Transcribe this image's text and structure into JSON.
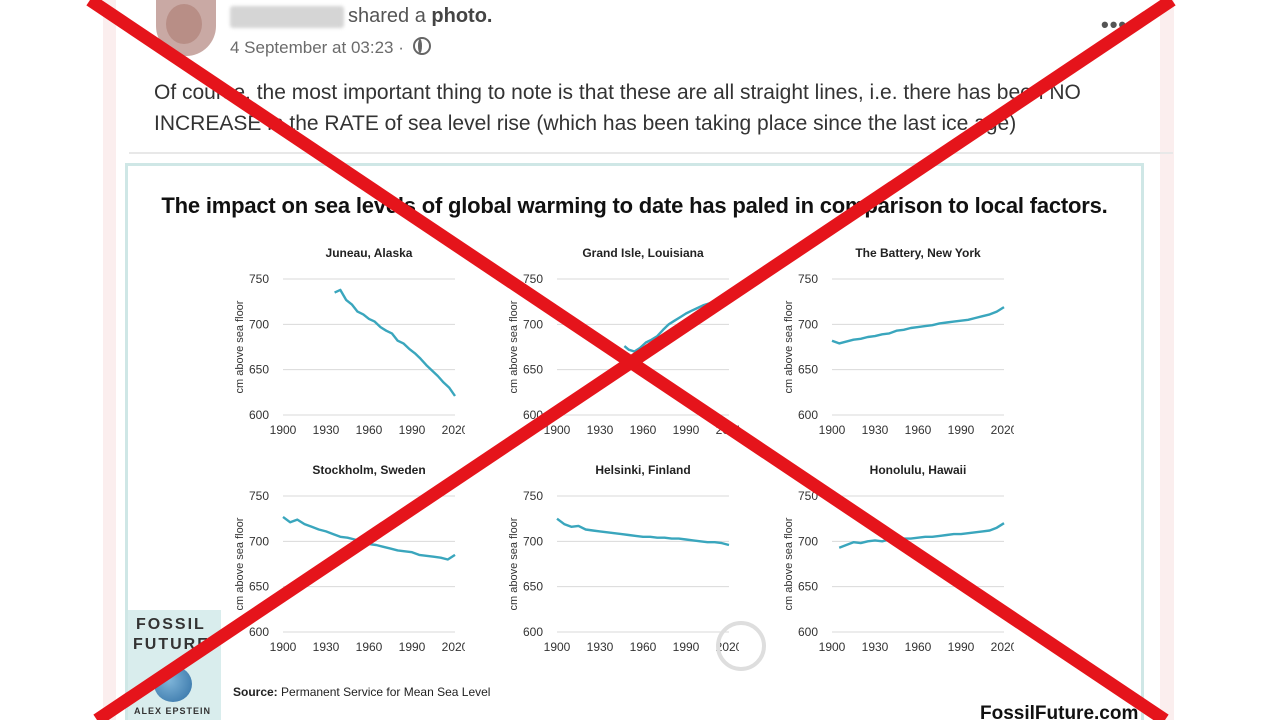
{
  "post": {
    "shared_text": "shared a",
    "shared_object": "photo.",
    "timestamp": "4 September at 03:23 ·",
    "more_label": "•••",
    "body": "Of course, the most important thing to note is that these are all straight lines, i.e. there has been NO INCREASE in the RATE of sea level rise (which has been taking place since the last ice age)"
  },
  "icons": {
    "audience": "globe-icon",
    "options": "more-options-icon"
  },
  "photo": {
    "title": "The impact on sea levels of global warming to date has paled in comparison to local factors.",
    "source_label": "Source:",
    "source_text": "Permanent Service for Mean Sea Level",
    "brand": "FossilFuture.com",
    "logo_line1": "FOSSIL",
    "logo_line2": "FUTURE",
    "logo_line3": "ALEX EPSTEIN"
  },
  "colors": {
    "series": "#3aa6bd",
    "cross": "#e5141b"
  },
  "chart_data": [
    {
      "type": "line",
      "title": "Juneau, Alaska",
      "ylabel": "cm above sea floor",
      "xlim": [
        1900,
        2020
      ],
      "ylim": [
        600,
        750
      ],
      "x_ticks": [
        1900,
        1930,
        1960,
        1990,
        2020
      ],
      "y_ticks": [
        600,
        650,
        700,
        750
      ],
      "grid": true,
      "series": [
        {
          "x": [
            1936,
            1940,
            1944,
            1948,
            1952,
            1956,
            1960,
            1964,
            1968,
            1972,
            1976,
            1980,
            1984,
            1988,
            1992,
            1996,
            2000,
            2004,
            2008,
            2012,
            2016,
            2020
          ],
          "values": [
            735,
            738,
            727,
            722,
            714,
            711,
            706,
            703,
            697,
            693,
            690,
            682,
            679,
            673,
            668,
            662,
            655,
            649,
            643,
            636,
            630,
            621
          ]
        }
      ]
    },
    {
      "type": "line",
      "title": "Grand Isle, Louisiana",
      "ylabel": "cm above sea floor",
      "xlim": [
        1900,
        2020
      ],
      "ylim": [
        600,
        750
      ],
      "x_ticks": [
        1900,
        1930,
        1960,
        1990,
        2020
      ],
      "y_ticks": [
        600,
        650,
        700,
        750
      ],
      "grid": true,
      "series": [
        {
          "x": [
            1947,
            1950,
            1954,
            1958,
            1962,
            1966,
            1970,
            1974,
            1978,
            1982,
            1986,
            1990,
            1994,
            1998,
            2002,
            2006,
            2010,
            2014,
            2018,
            2020
          ],
          "values": [
            676,
            672,
            670,
            674,
            680,
            683,
            687,
            694,
            700,
            704,
            708,
            712,
            715,
            718,
            721,
            723,
            725,
            727,
            729,
            731
          ]
        }
      ]
    },
    {
      "type": "line",
      "title": "The Battery, New York",
      "ylabel": "cm above sea floor",
      "xlim": [
        1900,
        2020
      ],
      "ylim": [
        600,
        750
      ],
      "x_ticks": [
        1900,
        1930,
        1960,
        1990,
        2020
      ],
      "y_ticks": [
        600,
        650,
        700,
        750
      ],
      "grid": true,
      "series": [
        {
          "x": [
            1900,
            1905,
            1910,
            1915,
            1920,
            1925,
            1930,
            1935,
            1940,
            1945,
            1950,
            1955,
            1960,
            1965,
            1970,
            1975,
            1980,
            1985,
            1990,
            1995,
            2000,
            2005,
            2010,
            2015,
            2020
          ],
          "values": [
            682,
            679,
            681,
            683,
            684,
            686,
            687,
            689,
            690,
            693,
            694,
            696,
            697,
            698,
            699,
            701,
            702,
            703,
            704,
            705,
            707,
            709,
            711,
            714,
            719
          ]
        }
      ]
    },
    {
      "type": "line",
      "title": "Stockholm, Sweden",
      "ylabel": "cm above sea floor",
      "xlim": [
        1900,
        2020
      ],
      "ylim": [
        600,
        750
      ],
      "x_ticks": [
        1900,
        1930,
        1960,
        1990,
        2020
      ],
      "y_ticks": [
        600,
        650,
        700,
        750
      ],
      "grid": true,
      "series": [
        {
          "x": [
            1900,
            1905,
            1910,
            1915,
            1920,
            1925,
            1930,
            1935,
            1940,
            1945,
            1950,
            1955,
            1960,
            1965,
            1970,
            1975,
            1980,
            1985,
            1990,
            1995,
            2000,
            2005,
            2010,
            2015,
            2020
          ],
          "values": [
            727,
            721,
            724,
            719,
            716,
            713,
            711,
            708,
            705,
            704,
            702,
            700,
            697,
            696,
            694,
            692,
            690,
            689,
            688,
            685,
            684,
            683,
            682,
            680,
            685
          ]
        }
      ]
    },
    {
      "type": "line",
      "title": "Helsinki, Finland",
      "ylabel": "cm above sea floor",
      "xlim": [
        1900,
        2020
      ],
      "ylim": [
        600,
        750
      ],
      "x_ticks": [
        1900,
        1930,
        1960,
        1990,
        2020
      ],
      "y_ticks": [
        600,
        650,
        700,
        750
      ],
      "grid": true,
      "series": [
        {
          "x": [
            1900,
            1905,
            1910,
            1915,
            1920,
            1925,
            1930,
            1935,
            1940,
            1945,
            1950,
            1955,
            1960,
            1965,
            1970,
            1975,
            1980,
            1985,
            1990,
            1995,
            2000,
            2005,
            2010,
            2015,
            2020
          ],
          "values": [
            725,
            719,
            716,
            717,
            713,
            712,
            711,
            710,
            709,
            708,
            707,
            706,
            705,
            705,
            704,
            704,
            703,
            703,
            702,
            701,
            700,
            699,
            699,
            698,
            696
          ]
        }
      ]
    },
    {
      "type": "line",
      "title": "Honolulu, Hawaii",
      "ylabel": "cm above sea floor",
      "xlim": [
        1900,
        2020
      ],
      "ylim": [
        600,
        750
      ],
      "x_ticks": [
        1900,
        1930,
        1960,
        1990,
        2020
      ],
      "y_ticks": [
        600,
        650,
        700,
        750
      ],
      "grid": true,
      "series": [
        {
          "x": [
            1905,
            1910,
            1915,
            1920,
            1925,
            1930,
            1935,
            1940,
            1945,
            1950,
            1955,
            1960,
            1965,
            1970,
            1975,
            1980,
            1985,
            1990,
            1995,
            2000,
            2005,
            2010,
            2015,
            2020
          ],
          "values": [
            693,
            696,
            699,
            698,
            700,
            701,
            700,
            702,
            702,
            703,
            703,
            704,
            705,
            705,
            706,
            707,
            708,
            708,
            709,
            710,
            711,
            712,
            715,
            720
          ]
        }
      ]
    }
  ]
}
